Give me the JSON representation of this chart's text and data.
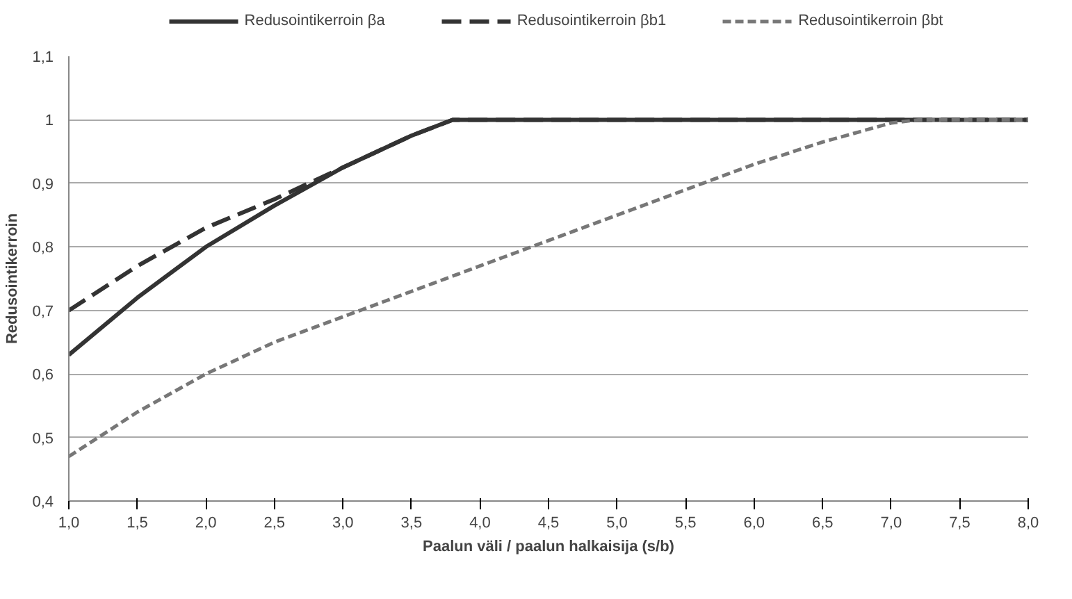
{
  "chart_data": {
    "type": "line",
    "xlabel": "Paalun väli / paalun halkaisija (s/b)",
    "ylabel": "Redusointikerroin",
    "xlim": [
      1.0,
      8.0
    ],
    "ylim": [
      0.4,
      1.1
    ],
    "xticks": [
      {
        "value": 1.0,
        "label": "1,0"
      },
      {
        "value": 1.5,
        "label": "1,5"
      },
      {
        "value": 2.0,
        "label": "2,0"
      },
      {
        "value": 2.5,
        "label": "2,5"
      },
      {
        "value": 3.0,
        "label": "3,0"
      },
      {
        "value": 3.5,
        "label": "3,5"
      },
      {
        "value": 4.0,
        "label": "4,0"
      },
      {
        "value": 4.5,
        "label": "4,5"
      },
      {
        "value": 5.0,
        "label": "5,0"
      },
      {
        "value": 5.5,
        "label": "5,5"
      },
      {
        "value": 6.0,
        "label": "6,0"
      },
      {
        "value": 6.5,
        "label": "6,5"
      },
      {
        "value": 7.0,
        "label": "7,0"
      },
      {
        "value": 7.5,
        "label": "7,5"
      },
      {
        "value": 8.0,
        "label": "8,0"
      }
    ],
    "yticks": [
      {
        "value": 0.4,
        "label": "0,4"
      },
      {
        "value": 0.5,
        "label": "0,5"
      },
      {
        "value": 0.6,
        "label": "0,6"
      },
      {
        "value": 0.7,
        "label": "0,7"
      },
      {
        "value": 0.8,
        "label": "0,8"
      },
      {
        "value": 0.9,
        "label": "0,9"
      },
      1,
      {
        "value": 1.1,
        "label": "1,1"
      }
    ],
    "grid": "y",
    "legend": "top",
    "marker": "none",
    "series": [
      {
        "name": "Redusointikerroin βa",
        "color": "#333333",
        "line_style": "solid",
        "x": [
          1.0,
          1.5,
          2.0,
          2.5,
          3.0,
          3.5,
          3.8,
          8.0
        ],
        "values": [
          0.63,
          0.72,
          0.8,
          0.865,
          0.925,
          0.975,
          1.0,
          1.0
        ]
      },
      {
        "name": "Redusointikerroin βb1",
        "color": "#333333",
        "line_style": "dashed",
        "x": [
          1.0,
          1.5,
          2.0,
          2.5,
          3.0,
          3.5,
          3.8,
          8.0
        ],
        "values": [
          0.7,
          0.77,
          0.83,
          0.875,
          0.925,
          0.975,
          1.0,
          1.0
        ]
      },
      {
        "name": "Redusointikerroin βbt",
        "color": "#777777",
        "line_style": "dotted",
        "x": [
          1.0,
          1.5,
          2.0,
          2.5,
          3.0,
          3.5,
          4.0,
          4.5,
          5.0,
          5.5,
          6.0,
          6.5,
          7.0,
          7.2,
          8.0
        ],
        "values": [
          0.47,
          0.54,
          0.6,
          0.65,
          0.69,
          0.73,
          0.77,
          0.81,
          0.85,
          0.89,
          0.93,
          0.965,
          0.995,
          1.0,
          1.0
        ]
      }
    ]
  }
}
